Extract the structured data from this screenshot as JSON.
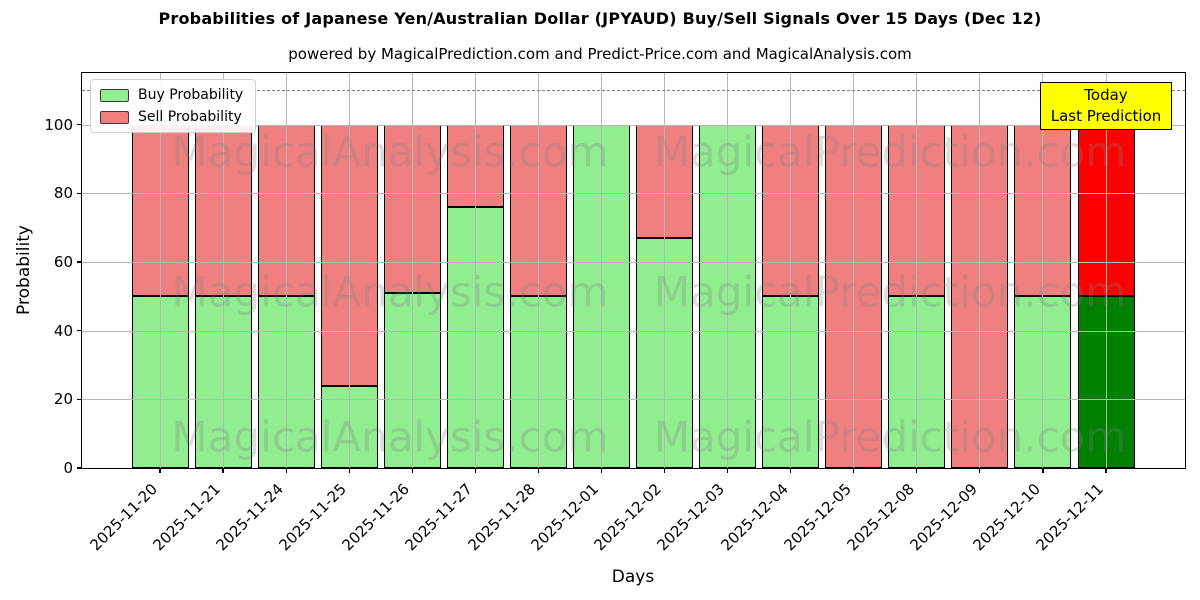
{
  "header": {
    "title": "Probabilities of Japanese Yen/Australian Dollar (JPYAUD) Buy/Sell Signals Over 15 Days (Dec 12)",
    "subtitle": "powered by MagicalPrediction.com and Predict-Price.com and MagicalAnalysis.com"
  },
  "colors": {
    "buy": "#90EE90",
    "sell": "#F08080",
    "today_buy": "#008000",
    "today_sell": "#FF0000",
    "annotation_bg": "#FFFF00",
    "grid": "#b6b6b6",
    "dashed_line": "#7f7f7f",
    "bar_edge": "#000000",
    "watermark": "rgba(128,128,128,0.28)"
  },
  "legend": {
    "items": [
      {
        "label": "Buy Probability",
        "color": "#90EE90"
      },
      {
        "label": "Sell Probability",
        "color": "#F08080"
      }
    ]
  },
  "annotation": {
    "line1": "Today",
    "line2": "Last Prediction"
  },
  "watermarks": {
    "left": "MagicalAnalysis.com",
    "right": "MagicalPrediction.com"
  },
  "chart_data": {
    "type": "bar",
    "stacked": true,
    "title": "Probabilities of Japanese Yen/Australian Dollar (JPYAUD) Buy/Sell Signals Over 15 Days (Dec 12)",
    "xlabel": "Days",
    "ylabel": "Probability",
    "ylim": [
      0,
      115
    ],
    "yticks": [
      0,
      20,
      40,
      60,
      80,
      100
    ],
    "dashed_line_y": 110,
    "grid": true,
    "legend_position": "upper left",
    "categories": [
      "2025-11-20",
      "2025-11-21",
      "2025-11-24",
      "2025-11-25",
      "2025-11-26",
      "2025-11-27",
      "2025-11-28",
      "2025-12-01",
      "2025-12-02",
      "2025-12-03",
      "2025-12-04",
      "2025-12-05",
      "2025-12-08",
      "2025-12-09",
      "2025-12-10",
      "2025-12-11"
    ],
    "series": [
      {
        "name": "Buy Probability",
        "color": "#90EE90",
        "values": [
          50,
          50,
          50,
          24,
          51,
          76,
          50,
          100,
          67,
          100,
          50,
          0,
          50,
          0,
          50,
          50
        ]
      },
      {
        "name": "Sell Probability",
        "color": "#F08080",
        "values": [
          50,
          50,
          50,
          76,
          49,
          24,
          50,
          0,
          33,
          0,
          50,
          100,
          50,
          100,
          50,
          50
        ]
      }
    ],
    "today_index": 15
  }
}
